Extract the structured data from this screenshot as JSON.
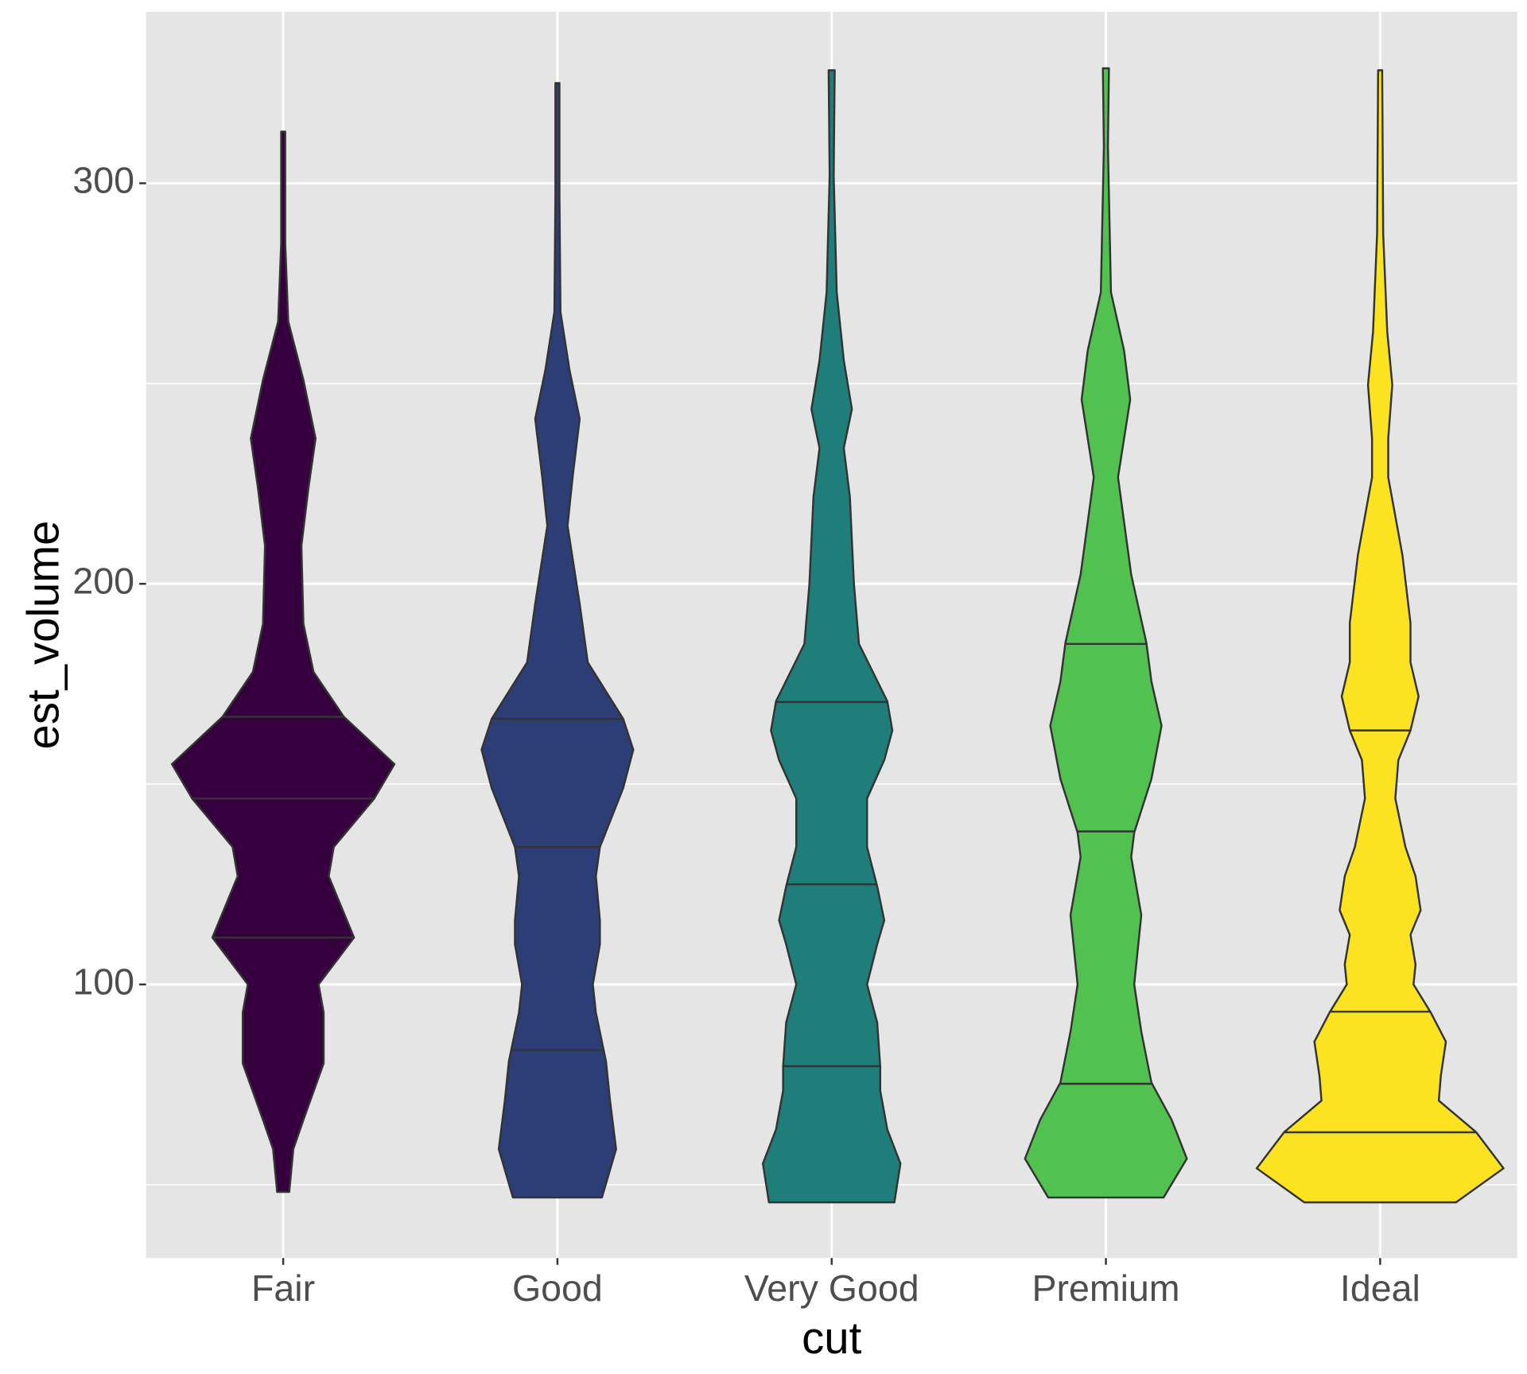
{
  "chart_data": {
    "type": "violin",
    "x_label": "cut",
    "y_label": "est_volume",
    "categories": [
      "Fair",
      "Good",
      "Very Good",
      "Premium",
      "Ideal"
    ],
    "ylim": [
      31.7,
      342.8
    ],
    "yticks": [
      100,
      200,
      300
    ],
    "minor_yticks": [
      50,
      150,
      250
    ],
    "grid": true,
    "violins": [
      {
        "color": "#35003d",
        "y": [
          48.2,
          58.9,
          66.2,
          80.3,
          93,
          100,
          111.7,
          127,
          134.3,
          146.4,
          155,
          166.8,
          178,
          190,
          209.5,
          224,
          236.3,
          250.9,
          265.5,
          285,
          312.9
        ],
        "density": [
          6,
          10,
          20,
          40,
          40,
          35,
          70,
          45,
          50,
          90,
          110,
          60,
          30,
          20,
          18,
          25,
          32,
          20,
          5,
          2,
          2
        ],
        "quantiles": [
          111.7,
          146.4,
          166.8
        ]
      },
      {
        "color": "#2d3e77",
        "y": [
          46.8,
          58.9,
          71,
          80.8,
          93,
          100,
          110,
          116,
          127,
          134.3,
          149,
          158.6,
          166.3,
          180.4,
          195,
          214.5,
          226.6,
          241.2,
          253.3,
          267.9,
          297,
          325
        ],
        "density": [
          44,
          58,
          52,
          48,
          38,
          35,
          42,
          42,
          38,
          42,
          65,
          75,
          65,
          30,
          22,
          10,
          15,
          22,
          12,
          3,
          2,
          2
        ],
        "quantiles": [
          83.6,
          134.3,
          166.3
        ]
      },
      {
        "color": "#1f7e79",
        "y": [
          45.6,
          55.3,
          63.8,
          73.5,
          79.6,
          90.5,
          100,
          110,
          116,
          124.5,
          134.3,
          146.4,
          156,
          163.4,
          170.7,
          185,
          200,
          221.7,
          233.9,
          243.6,
          255.8,
          272.8,
          302,
          328.2
        ],
        "density": [
          62,
          68,
          55,
          48,
          48,
          45,
          35,
          45,
          52,
          45,
          35,
          35,
          52,
          60,
          55,
          27,
          22,
          18,
          12,
          20,
          12,
          5,
          2,
          3
        ],
        "quantiles": [
          79.6,
          125,
          170.5
        ]
      },
      {
        "color": "#51c150",
        "y": [
          46.8,
          56.5,
          66.2,
          75.5,
          88.2,
          100,
          117.3,
          131.8,
          137.9,
          151.3,
          164.6,
          175.6,
          185.3,
          202.3,
          226.6,
          246,
          258.2,
          272.8,
          309.2,
          328.7
        ],
        "density": [
          57,
          80,
          65,
          45,
          35,
          28,
          35,
          25,
          28,
          45,
          55,
          45,
          40,
          25,
          12,
          24,
          18,
          5,
          2,
          3
        ],
        "quantiles": [
          75.2,
          138.2,
          185
        ]
      },
      {
        "color": "#fbe322",
        "y": [
          45.6,
          54.1,
          63.1,
          71,
          77.2,
          85.7,
          93,
          100,
          105,
          112.4,
          118.5,
          127,
          134.3,
          146.4,
          156,
          163.4,
          171.9,
          180.4,
          190.2,
          207.2,
          226.6,
          236.3,
          249.7,
          263,
          287.4,
          328.2
        ],
        "density": [
          75,
          122,
          95,
          58,
          60,
          65,
          50,
          33,
          35,
          30,
          40,
          35,
          25,
          15,
          18,
          30,
          38,
          30,
          30,
          22,
          8,
          8,
          12,
          7,
          3,
          2
        ],
        "quantiles": [
          63.1,
          93.2,
          163.4
        ]
      }
    ]
  }
}
